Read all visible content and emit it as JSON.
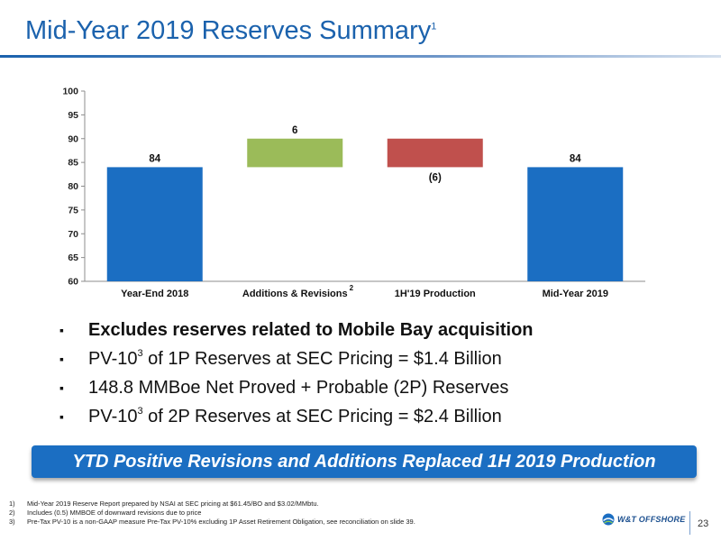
{
  "slide": {
    "title": "Mid-Year 2019 Reserves Summary",
    "title_sup": "1",
    "page_number": "23"
  },
  "chart_data": {
    "type": "bar",
    "subtype": "waterfall",
    "categories": [
      "Year-End 2018",
      "Additions & Revisions",
      "1H'19 Production",
      "Mid-Year 2019"
    ],
    "category_superscripts": [
      "",
      "2",
      "",
      ""
    ],
    "bars": [
      {
        "start": 60,
        "end": 84,
        "label": "84",
        "color": "#1b6ec2",
        "label_position": "above"
      },
      {
        "start": 84,
        "end": 90,
        "label": "6",
        "color": "#9bbb59",
        "label_position": "above"
      },
      {
        "start": 90,
        "end": 84,
        "label": "(6)",
        "color": "#c0504d",
        "label_position": "below"
      },
      {
        "start": 60,
        "end": 84,
        "label": "84",
        "color": "#1b6ec2",
        "label_position": "above"
      }
    ],
    "ylim": [
      60,
      100
    ],
    "yticks": [
      "60",
      "65",
      "70",
      "75",
      "80",
      "85",
      "90",
      "95",
      "100"
    ],
    "grid": false
  },
  "bullets": [
    {
      "pre": "Excludes reserves related to Mobile Bay acquisition",
      "sup": "",
      "post": "",
      "bold": true
    },
    {
      "pre": "PV-10",
      "sup": "3",
      "post": " of 1P Reserves at SEC Pricing = $1.4 Billion",
      "bold": false
    },
    {
      "pre": "148.8 MMBoe Net Proved + Probable (2P) Reserves",
      "sup": "",
      "post": "",
      "bold": false
    },
    {
      "pre": "PV-10",
      "sup": "3",
      "post": " of 2P Reserves at SEC Pricing = $2.4 Billion",
      "bold": false
    }
  ],
  "bullet_marker": "▪",
  "banner": {
    "text": "YTD Positive Revisions and Additions Replaced 1H 2019 Production"
  },
  "footnotes": [
    {
      "num": "1)",
      "text": "Mid-Year 2019 Reserve Report prepared by NSAI at SEC pricing at $61.45/BO and $3.02/MMbtu."
    },
    {
      "num": "2)",
      "text": "Includes (0.5) MMBOE of downward revisions due to price"
    },
    {
      "num": "3)",
      "text": "Pre-Tax PV-10 is a non-GAAP measure Pre-Tax PV-10% excluding 1P Asset Retirement Obligation, see reconciliation on slide 39."
    }
  ],
  "logo": {
    "text": "W&T OFFSHORE",
    "icon": "globe-logo-icon"
  }
}
